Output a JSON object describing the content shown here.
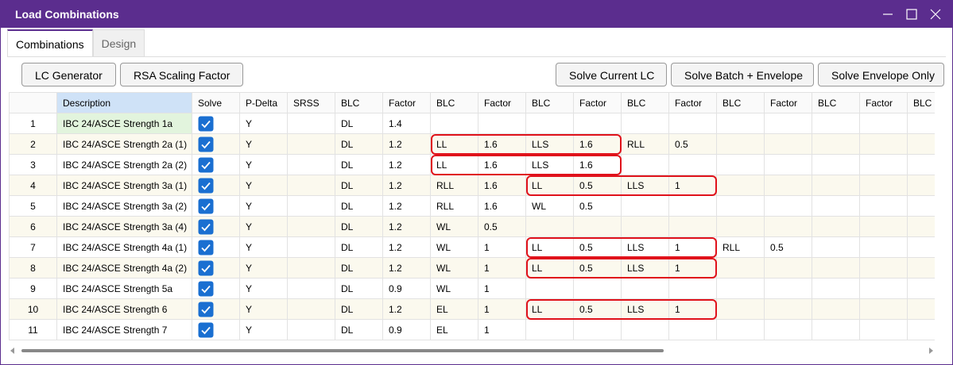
{
  "window": {
    "title": "Load Combinations"
  },
  "tabs": [
    "Combinations",
    "Design"
  ],
  "left_buttons": [
    "LC Generator",
    "RSA Scaling Factor"
  ],
  "right_buttons": [
    "Solve Current LC",
    "Solve Batch + Envelope",
    "Solve Envelope Only"
  ],
  "table": {
    "columns": [
      null,
      "Description",
      "Solve",
      "P-Delta",
      "SRSS",
      "BLC",
      "Factor",
      "BLC",
      "Factor",
      "BLC",
      "Factor",
      "BLC",
      "Factor",
      "BLC",
      "Factor",
      "BLC",
      "Factor",
      "BLC"
    ],
    "rows": [
      [
        "1",
        "IBC 24/ASCE Strength 1a",
        null,
        "Y",
        null,
        "DL",
        "1.4",
        null,
        null,
        null,
        null,
        null,
        null,
        null,
        null,
        null,
        null,
        null
      ],
      [
        "2",
        "IBC 24/ASCE Strength 2a (1)",
        null,
        "Y",
        null,
        "DL",
        "1.2",
        "LL",
        "1.6",
        "LLS",
        "1.6",
        "RLL",
        "0.5",
        null,
        null,
        null,
        null,
        null
      ],
      [
        "3",
        "IBC 24/ASCE Strength 2a (2)",
        null,
        "Y",
        null,
        "DL",
        "1.2",
        "LL",
        "1.6",
        "LLS",
        "1.6",
        null,
        null,
        null,
        null,
        null,
        null,
        null
      ],
      [
        "4",
        "IBC 24/ASCE Strength 3a (1)",
        null,
        "Y",
        null,
        "DL",
        "1.2",
        "RLL",
        "1.6",
        "LL",
        "0.5",
        "LLS",
        "1",
        null,
        null,
        null,
        null,
        null
      ],
      [
        "5",
        "IBC 24/ASCE Strength 3a (2)",
        null,
        "Y",
        null,
        "DL",
        "1.2",
        "RLL",
        "1.6",
        "WL",
        "0.5",
        null,
        null,
        null,
        null,
        null,
        null,
        null
      ],
      [
        "6",
        "IBC 24/ASCE Strength 3a (4)",
        null,
        "Y",
        null,
        "DL",
        "1.2",
        "WL",
        "0.5",
        null,
        null,
        null,
        null,
        null,
        null,
        null,
        null,
        null
      ],
      [
        "7",
        "IBC 24/ASCE Strength 4a (1)",
        null,
        "Y",
        null,
        "DL",
        "1.2",
        "WL",
        "1",
        "LL",
        "0.5",
        "LLS",
        "1",
        "RLL",
        "0.5",
        null,
        null,
        null
      ],
      [
        "8",
        "IBC 24/ASCE Strength 4a (2)",
        null,
        "Y",
        null,
        "DL",
        "1.2",
        "WL",
        "1",
        "LL",
        "0.5",
        "LLS",
        "1",
        null,
        null,
        null,
        null,
        null
      ],
      [
        "9",
        "IBC 24/ASCE Strength 5a",
        null,
        "Y",
        null,
        "DL",
        "0.9",
        "WL",
        "1",
        null,
        null,
        null,
        null,
        null,
        null,
        null,
        null,
        null
      ],
      [
        "10",
        "IBC 24/ASCE Strength 6",
        null,
        "Y",
        null,
        "DL",
        "1.2",
        "EL",
        "1",
        "LL",
        "0.5",
        "LLS",
        "1",
        null,
        null,
        null,
        null,
        null
      ],
      [
        "11",
        "IBC 24/ASCE Strength 7",
        null,
        "Y",
        null,
        "DL",
        "0.9",
        "EL",
        "1",
        null,
        null,
        null,
        null,
        null,
        null,
        null,
        null,
        null
      ]
    ]
  }
}
